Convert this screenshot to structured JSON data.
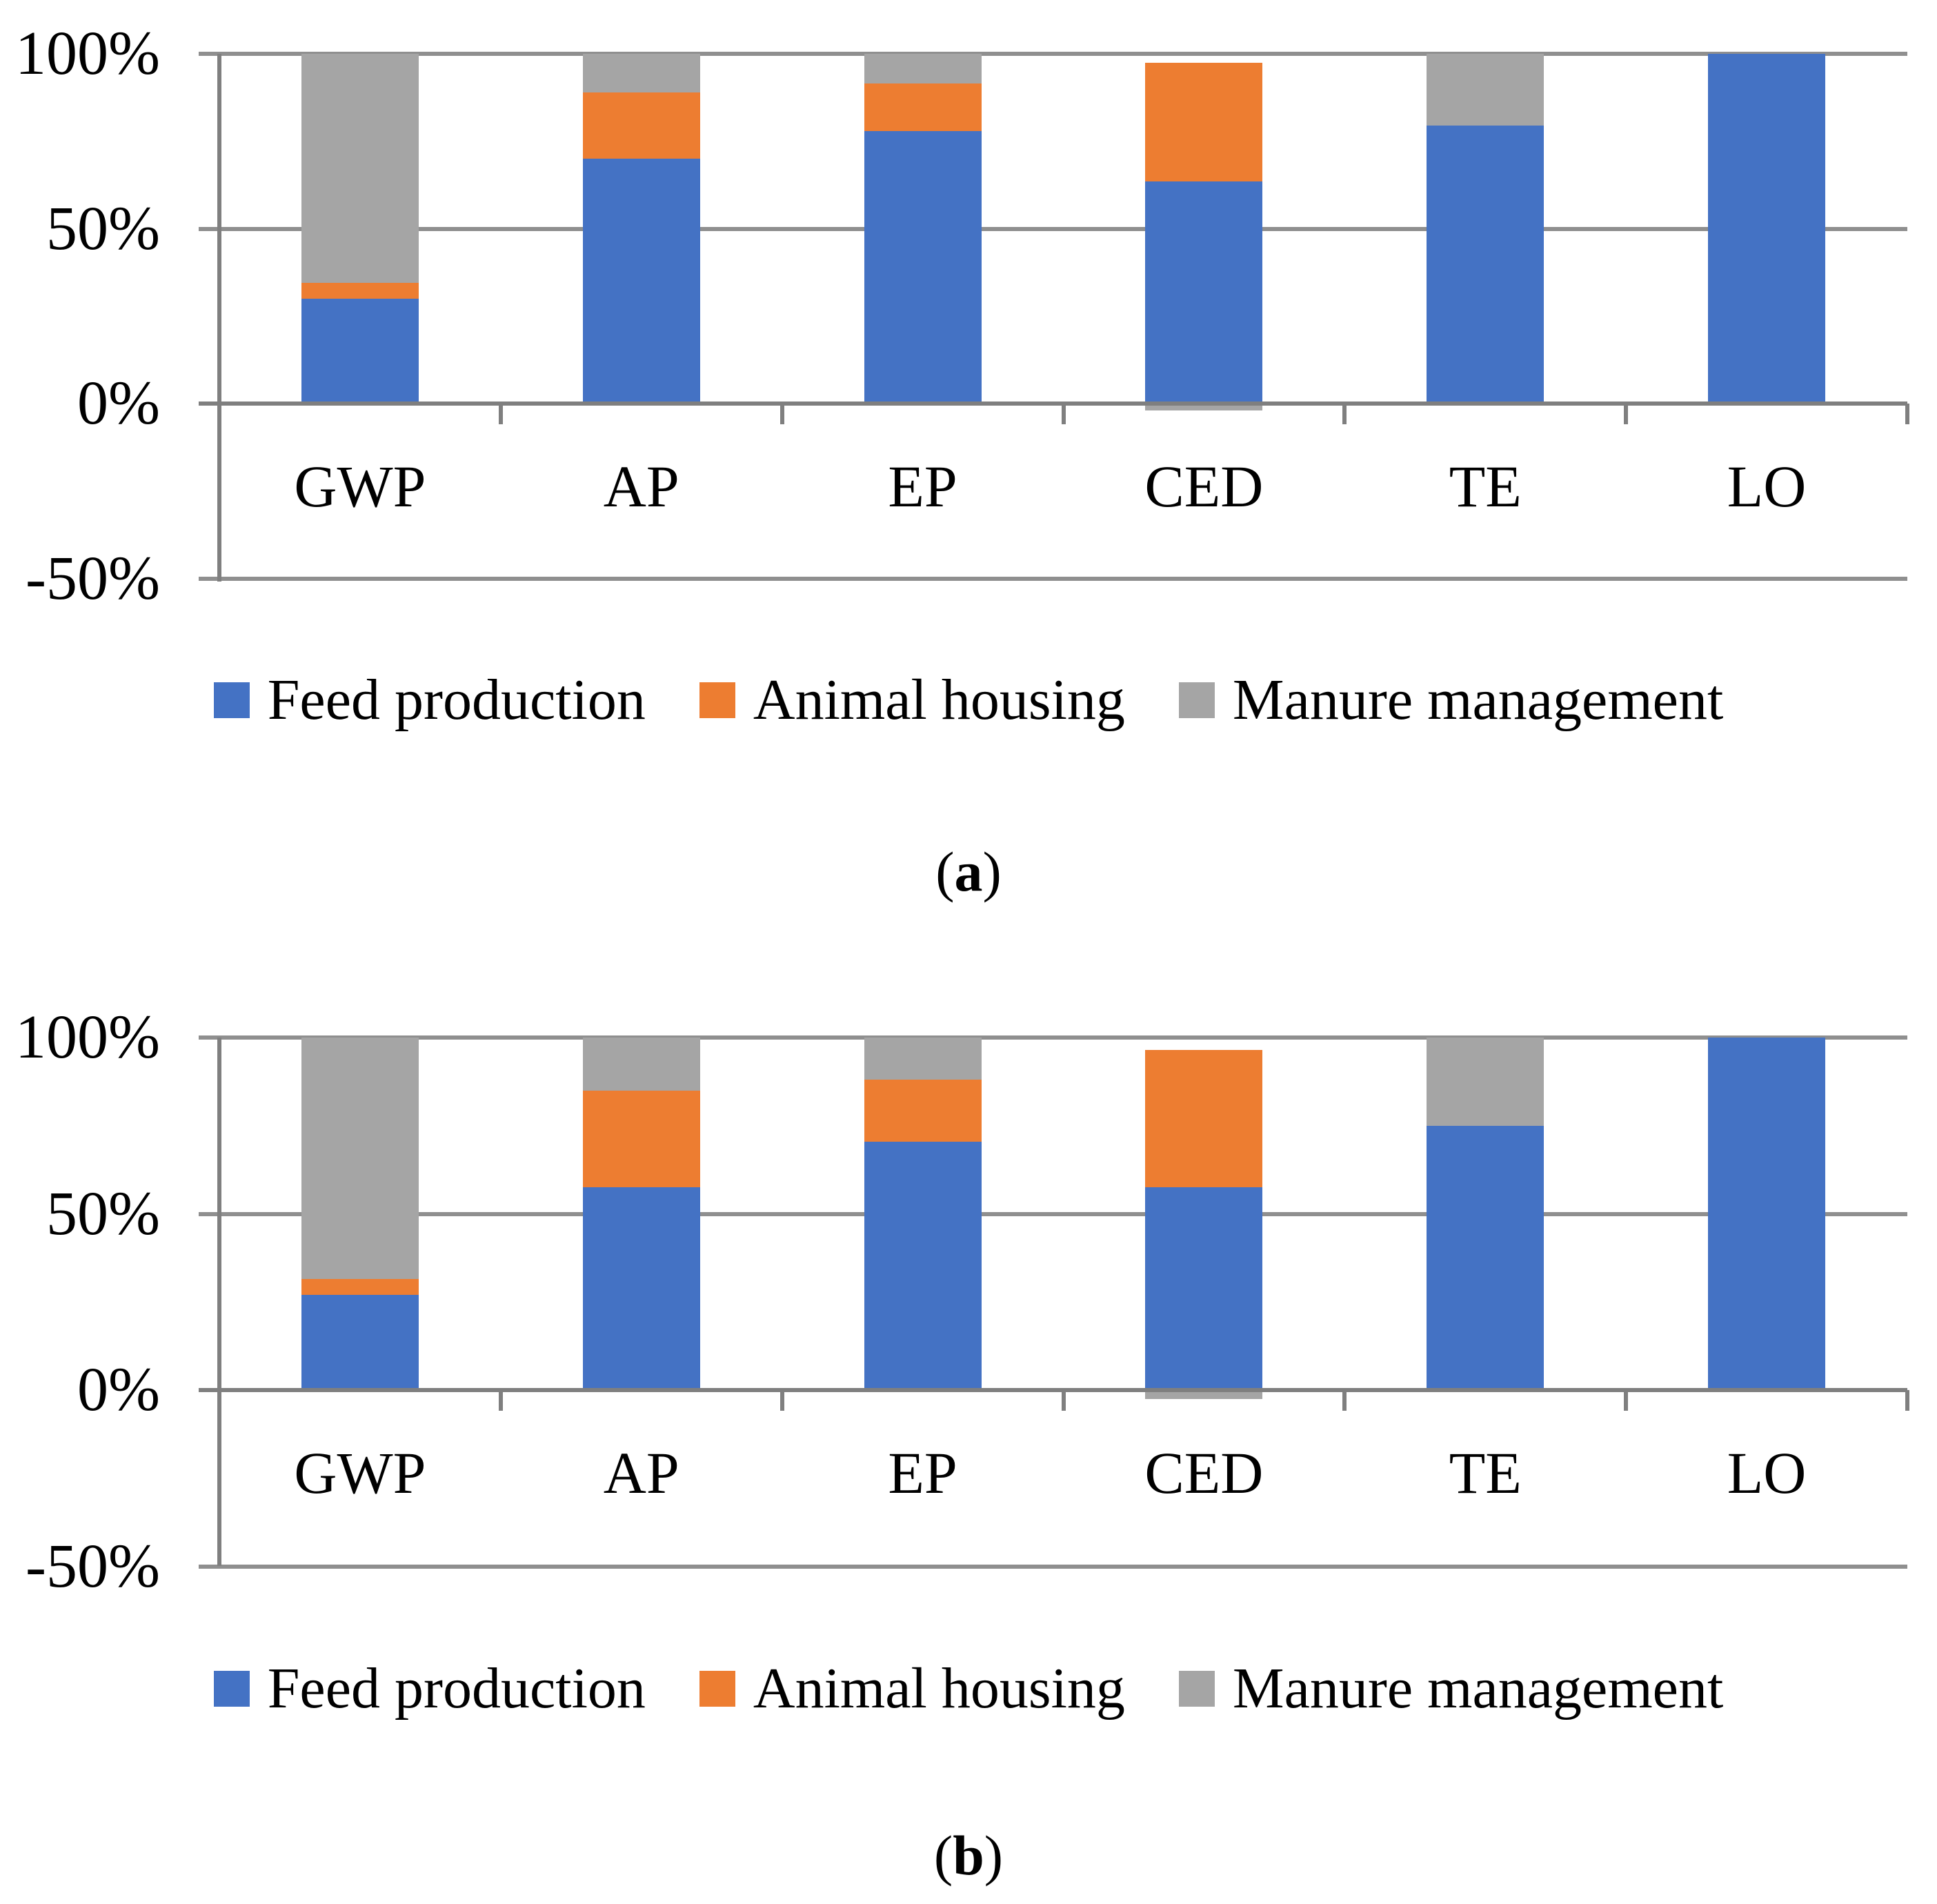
{
  "figure": {
    "description_visible_text_only": "",
    "captions": {
      "a": {
        "open": "(",
        "letter": "a",
        "close": ")"
      },
      "b": {
        "open": "(",
        "letter": "b",
        "close": ")"
      }
    }
  },
  "colors": {
    "feed_production_blue": "#4472C4",
    "animal_housing_orange": "#ED7D31",
    "manure_management_gray": "#A5A5A5",
    "gridline_gray": "#8F8F8F",
    "axis_gray": "#7F7F7F",
    "text_black": "#000000"
  },
  "chart_data": [
    {
      "type": "bar",
      "subtype": "100-percent-stacked-column",
      "title": "",
      "xlabel": "",
      "ylabel": "",
      "grid": true,
      "legend_position": "bottom",
      "caption": {
        "open": "(",
        "letter": "a",
        "close": ")"
      },
      "categories": [
        "GWP",
        "AP",
        "EP",
        "CED",
        "TE",
        "LO"
      ],
      "series": [
        {
          "name": "Feed production",
          "color": "#4472C4",
          "values": [
            30,
            70,
            78,
            63.5,
            79.5,
            100
          ]
        },
        {
          "name": "Animal housing",
          "color": "#ED7D31",
          "values": [
            4.5,
            19,
            13.5,
            34,
            0,
            0
          ]
        },
        {
          "name": "Manure management",
          "color": "#A5A5A5",
          "values": [
            65.5,
            11,
            8.5,
            -2,
            20.5,
            0
          ]
        }
      ],
      "y_axis": {
        "min": -50,
        "max": 100,
        "ticks": [
          {
            "label": "100%",
            "value": 100
          },
          {
            "label": "50%",
            "value": 50
          },
          {
            "label": "0%",
            "value": 0
          },
          {
            "label": "-50%",
            "value": -50
          }
        ]
      }
    },
    {
      "type": "bar",
      "subtype": "100-percent-stacked-column",
      "title": "",
      "xlabel": "",
      "ylabel": "",
      "grid": true,
      "legend_position": "bottom",
      "caption": {
        "open": "(",
        "letter": "b",
        "close": ")"
      },
      "categories": [
        "GWP",
        "AP",
        "EP",
        "CED",
        "TE",
        "LO"
      ],
      "series": [
        {
          "name": "Feed production",
          "color": "#4472C4",
          "values": [
            27,
            57.5,
            70.5,
            57.5,
            75,
            100
          ]
        },
        {
          "name": "Animal housing",
          "color": "#ED7D31",
          "values": [
            4.5,
            27.5,
            17.5,
            39,
            0,
            0
          ]
        },
        {
          "name": "Manure management",
          "color": "#A5A5A5",
          "values": [
            68.5,
            15,
            12,
            -2.5,
            25,
            0
          ]
        }
      ],
      "y_axis": {
        "min": -50,
        "max": 100,
        "ticks": [
          {
            "label": "100%",
            "value": 100
          },
          {
            "label": "50%",
            "value": 50
          },
          {
            "label": "0%",
            "value": 0
          },
          {
            "label": "-50%",
            "value": -50
          }
        ]
      }
    }
  ]
}
